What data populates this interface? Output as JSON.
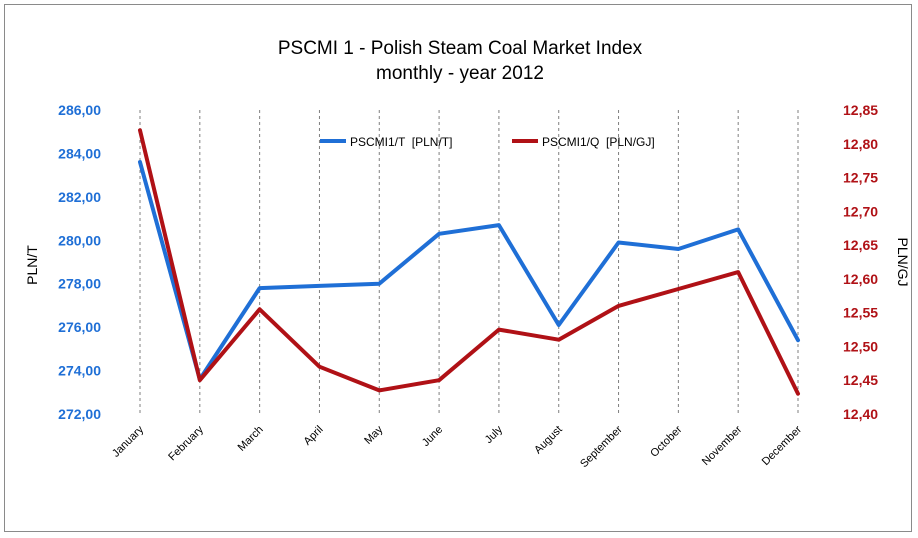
{
  "chart_data": {
    "type": "line",
    "title": "PSCMI 1 - Polish Steam Coal Market Index",
    "subtitle": "monthly - year 2012",
    "categories": [
      "January",
      "February",
      "March",
      "April",
      "May",
      "June",
      "July",
      "August",
      "September",
      "October",
      "November",
      "December"
    ],
    "series": [
      {
        "name": "PSCMI1/T  [PLN/T]",
        "axis": "left",
        "color": "#1f6fd6",
        "values": [
          283.6,
          273.6,
          277.8,
          277.9,
          278.0,
          280.3,
          280.7,
          276.1,
          279.9,
          279.6,
          280.5,
          275.4
        ]
      },
      {
        "name": "PSCMI1/Q  [PLN/GJ]",
        "axis": "right",
        "color": "#b01116",
        "values": [
          12.82,
          12.45,
          12.555,
          12.47,
          12.435,
          12.45,
          12.525,
          12.51,
          12.56,
          12.585,
          12.61,
          12.43
        ]
      }
    ],
    "y_left": {
      "label": "PLN/T",
      "ylim": [
        272,
        286
      ],
      "ticks": [
        "272,00",
        "274,00",
        "276,00",
        "278,00",
        "280,00",
        "282,00",
        "284,00",
        "286,00"
      ]
    },
    "y_right": {
      "label": "PLN/GJ",
      "ylim": [
        12.4,
        12.85
      ],
      "ticks": [
        "12,40",
        "12,45",
        "12,50",
        "12,55",
        "12,60",
        "12,65",
        "12,70",
        "12,75",
        "12,80",
        "12,85"
      ]
    },
    "legend_position": "top-center",
    "grid": "vertical dashed"
  }
}
